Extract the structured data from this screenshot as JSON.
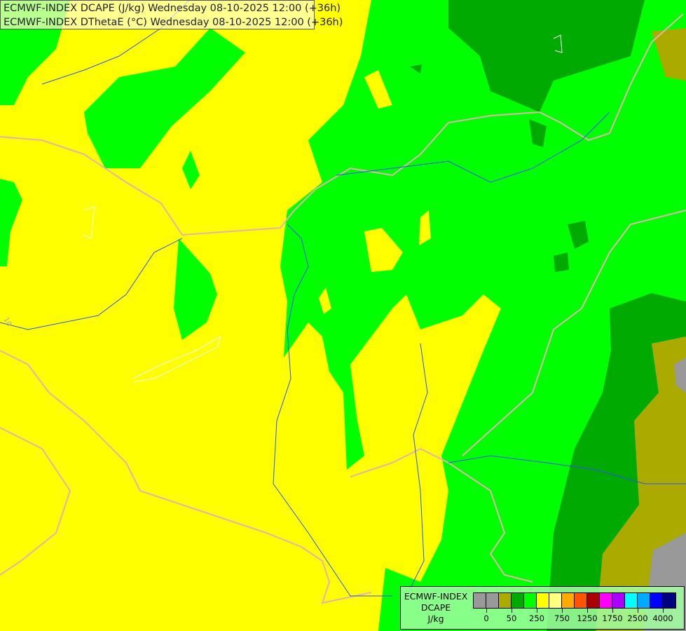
{
  "title": {
    "line1": "ECMWF-INDEX DCAPE (J/kg) Wednesday 08-10-2025 12:00 (+36h)",
    "line2": "ECMWF-INDEX DThetaE (°C) Wednesday 08-10-2025 12:00 (+36h)"
  },
  "legend": {
    "line1": "ECMWF-INDEX",
    "line2": "DCAPE",
    "line3": "J/kg",
    "colors": [
      "#999999",
      "#999999",
      "#aaaa00",
      "#00aa00",
      "#00ff00",
      "#ffff00",
      "#ffff80",
      "#ffaa00",
      "#ff5500",
      "#aa0000",
      "#ff00ff",
      "#aa00ff",
      "#00ffff",
      "#00aaff",
      "#0000ff",
      "#000080"
    ],
    "ticks": [
      "0",
      "50",
      "250",
      "750",
      "1250",
      "1750",
      "2500",
      "4000"
    ]
  },
  "map_colors": {
    "yellow": "#ffff00",
    "green": "#00ff00",
    "dark_green": "#00aa00",
    "olive": "#aaaa00",
    "gray": "#999999",
    "border": "#e8b0b0",
    "river": "#3050ff"
  },
  "contour_label": "10"
}
